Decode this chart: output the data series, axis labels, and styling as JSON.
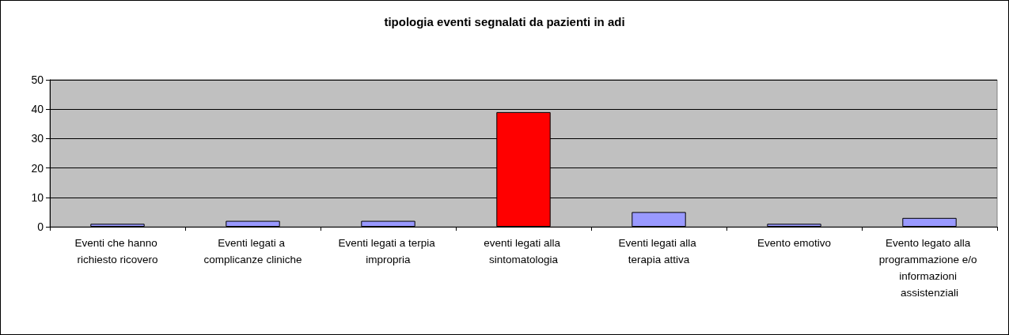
{
  "chart_data": {
    "type": "bar",
    "title": "tipologia eventi segnalati da pazienti in adi",
    "categories": [
      "Eventi che hanno richiesto ricovero",
      "Eventi legati a complicanze cliniche",
      "Eventi legati a terpia impropria",
      "eventi legati alla sintomatologia",
      "Eventi legati alla terapia attiva",
      "Evento emotivo",
      "Evento legato alla programmazione e/o informazioni assistenziali"
    ],
    "values": [
      1,
      2,
      2,
      39,
      5,
      1,
      3
    ],
    "colors": [
      "#9999ff",
      "#9999ff",
      "#9999ff",
      "#ff0000",
      "#9999ff",
      "#9999ff",
      "#9999ff"
    ],
    "ylim": [
      0,
      50
    ],
    "yticks": [
      0,
      10,
      20,
      30,
      40,
      50
    ],
    "grid": "y"
  }
}
